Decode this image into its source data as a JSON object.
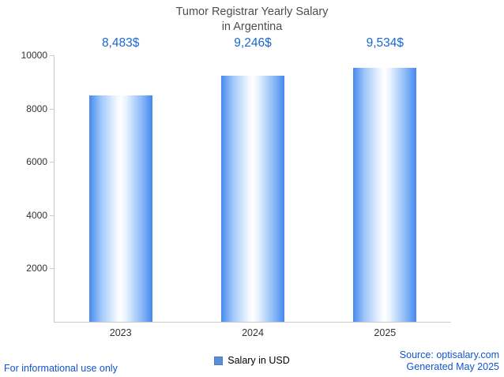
{
  "title": {
    "line1": "Tumor Registrar Yearly Salary",
    "line2": "in Argentina"
  },
  "chart_data": {
    "type": "bar",
    "categories": [
      "2023",
      "2024",
      "2025"
    ],
    "values": [
      8483,
      9246,
      9534
    ],
    "value_labels": [
      "8,483$",
      "9,246$",
      "9,534$"
    ],
    "series_name": "Salary in USD",
    "title": "Tumor Registrar Yearly Salary in Argentina",
    "xlabel": "",
    "ylabel": "",
    "ylim": [
      0,
      10000
    ],
    "yticks": [
      2000,
      4000,
      6000,
      8000,
      10000
    ],
    "grid": false,
    "legend_position": "bottom",
    "bar_color": "#4688ef"
  },
  "legend": {
    "label": "Salary in USD",
    "swatch_color": "#5b8ed6"
  },
  "footer": {
    "left": "For informational use only",
    "source": "Source: optisalary.com",
    "generated": "Generated May 2025"
  },
  "colors": {
    "value_label": "#1967d2",
    "footer_link": "#1155cc",
    "axis": "#c9c9c9",
    "title_text": "#4d4d4d"
  }
}
